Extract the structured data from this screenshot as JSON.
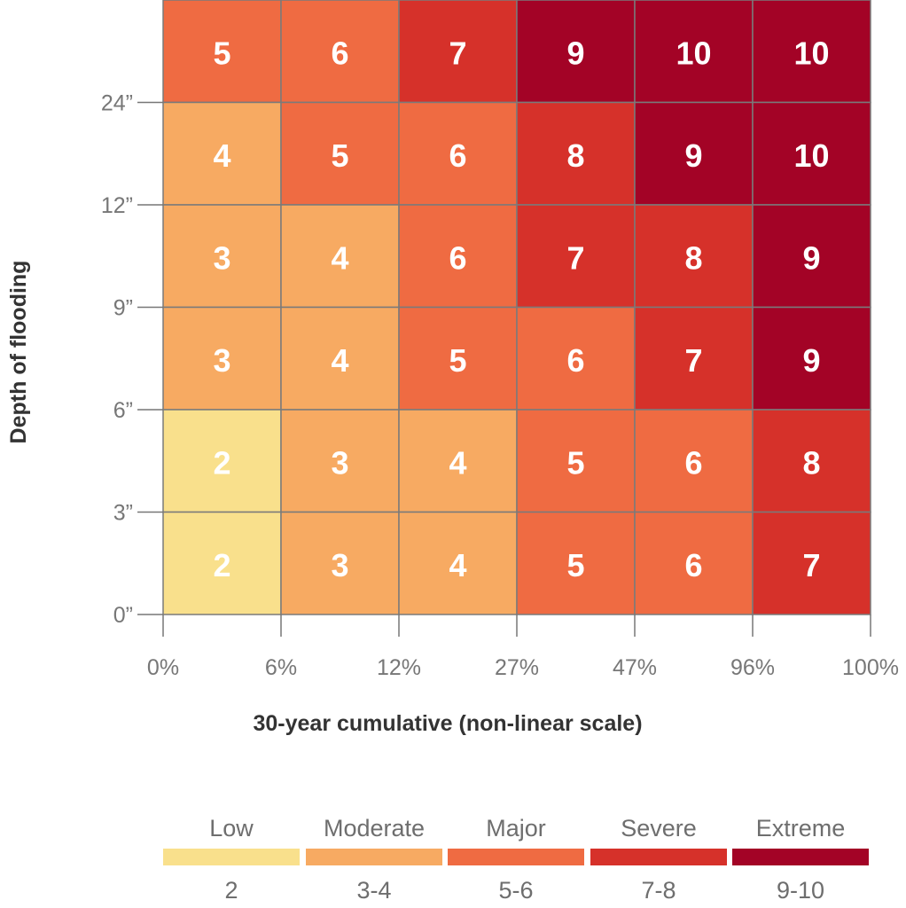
{
  "chart_data": {
    "type": "heatmap",
    "title": "",
    "xlabel": "30-year cumulative (non-linear scale)",
    "ylabel": "Depth of flooding",
    "x_ticks": [
      "0%",
      "6%",
      "12%",
      "27%",
      "47%",
      "96%",
      "100%"
    ],
    "y_ticks": [
      "0”",
      "3”",
      "6”",
      "9”",
      "12”",
      "24”"
    ],
    "rows_top_to_bottom": [
      [
        5,
        6,
        7,
        9,
        10,
        10
      ],
      [
        4,
        5,
        6,
        8,
        9,
        10
      ],
      [
        3,
        4,
        6,
        7,
        8,
        9
      ],
      [
        3,
        4,
        5,
        6,
        7,
        9
      ],
      [
        2,
        3,
        4,
        5,
        6,
        8
      ],
      [
        2,
        3,
        4,
        5,
        6,
        7
      ]
    ],
    "legend": [
      {
        "label": "Low",
        "range": "2",
        "color": "#f9e08c",
        "min": 0,
        "max": 2
      },
      {
        "label": "Moderate",
        "range": "3-4",
        "color": "#f7aa62",
        "min": 3,
        "max": 4
      },
      {
        "label": "Major",
        "range": "5-6",
        "color": "#ef6b42",
        "min": 5,
        "max": 6
      },
      {
        "label": "Severe",
        "range": "7-8",
        "color": "#d6312a",
        "min": 7,
        "max": 8
      },
      {
        "label": "Extreme",
        "range": "9-10",
        "color": "#a30326",
        "min": 9,
        "max": 10
      }
    ],
    "legend_position": "bottom"
  }
}
